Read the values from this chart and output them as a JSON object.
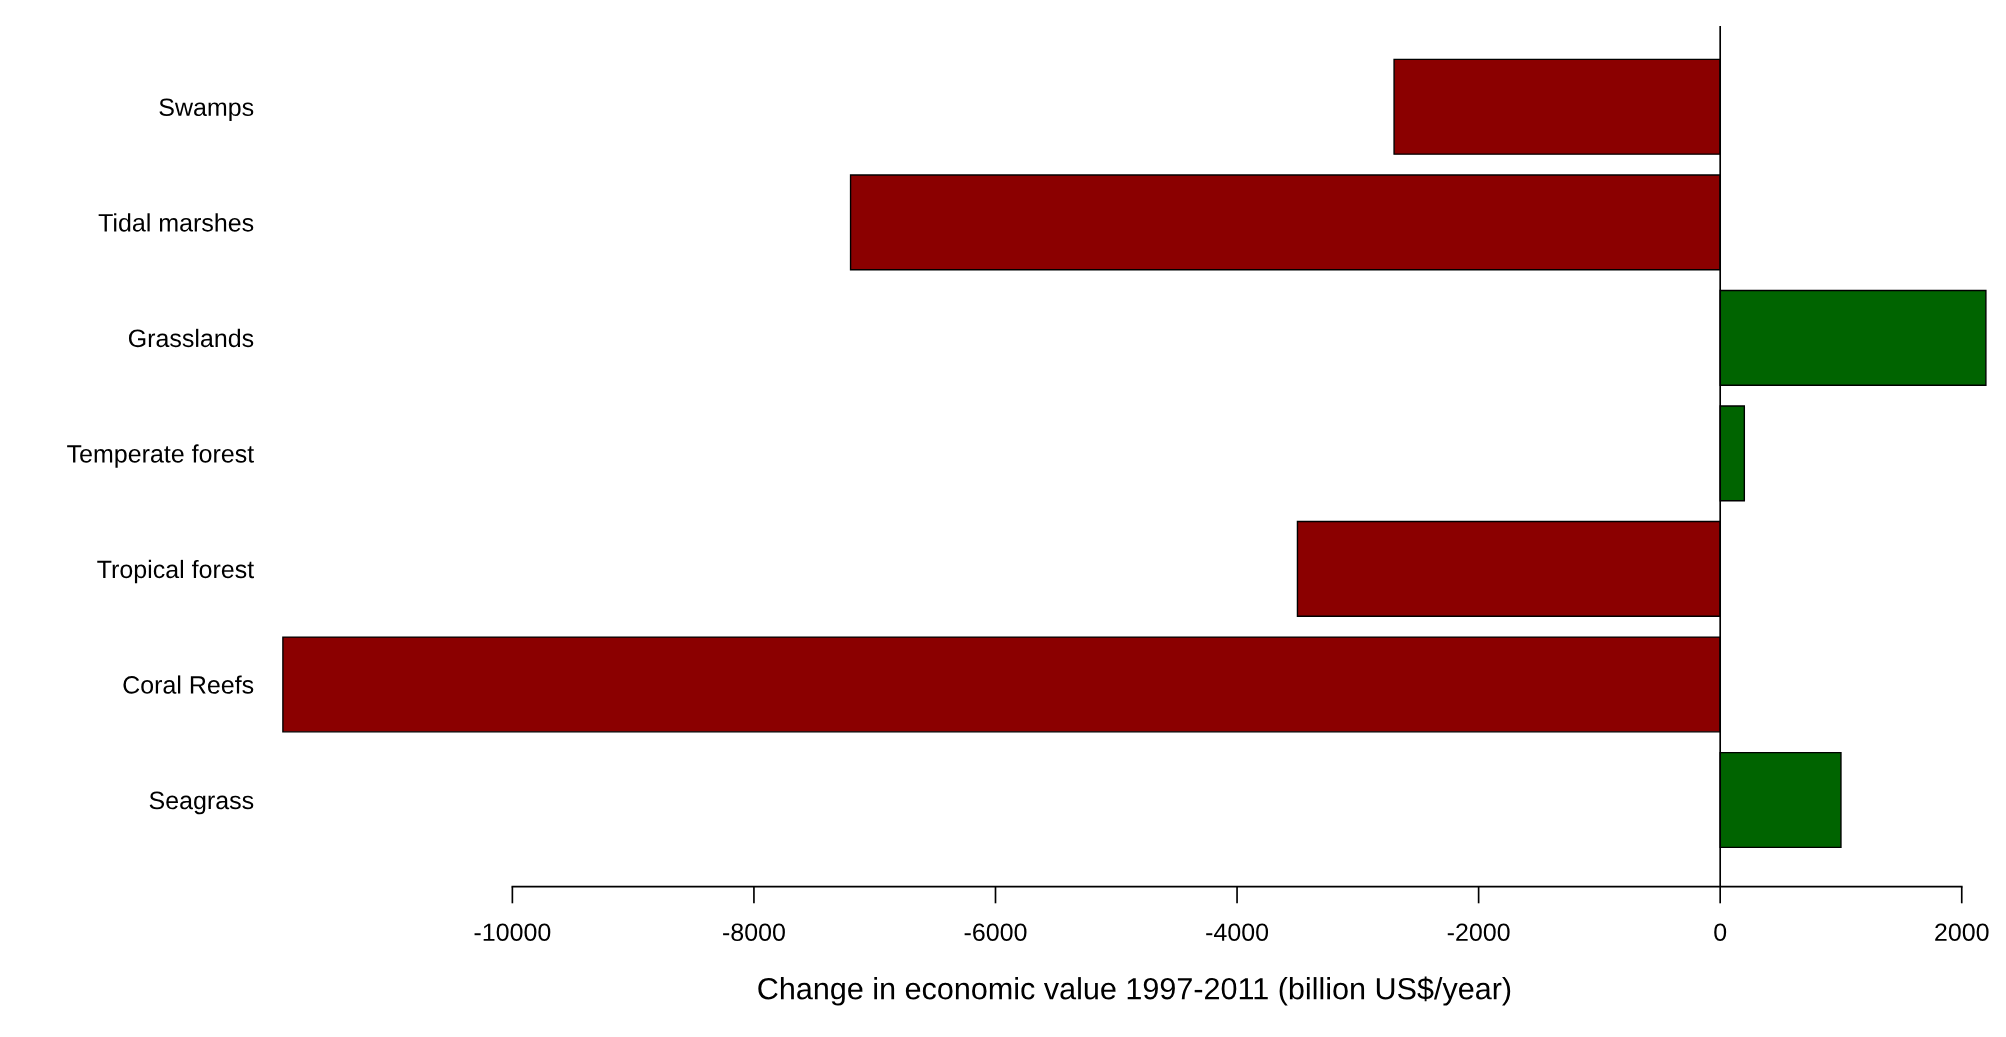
{
  "chart_data": {
    "type": "bar",
    "orientation": "horizontal",
    "categories": [
      "Swamps",
      "Tidal marshes",
      "Grasslands",
      "Temperate forest",
      "Tropical forest",
      "Coral Reefs",
      "Seagrass"
    ],
    "values": [
      -2700,
      -7200,
      2200,
      200,
      -3500,
      -11900,
      1000
    ],
    "colors": [
      "#8b0000",
      "#8b0000",
      "#006400",
      "#006400",
      "#8b0000",
      "#8b0000",
      "#006400"
    ],
    "xlabel": "Change in economic value 1997-2011 (billion US$/year)",
    "xlim": [
      -12000,
      2300
    ],
    "xticks": [
      -10000,
      -8000,
      -6000,
      -4000,
      -2000,
      0,
      2000
    ],
    "ref_lines": [
      {
        "axis": "x",
        "value": 0,
        "color": "#000000"
      }
    ],
    "grid": false,
    "legend": false
  }
}
